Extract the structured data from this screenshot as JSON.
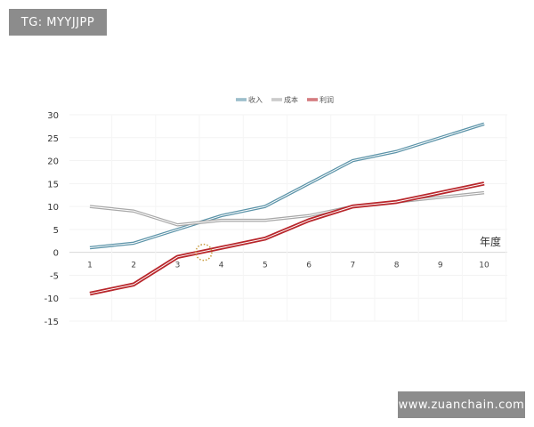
{
  "watermarks": {
    "top_left": "TG: MYYJJPP",
    "bottom_right": "www.zuanchain.com"
  },
  "chart_data": {
    "type": "line",
    "title": "",
    "xlabel": "年度",
    "ylabel": "",
    "x": [
      1,
      2,
      3,
      4,
      5,
      6,
      7,
      8,
      9,
      10
    ],
    "ylim": [
      -15,
      30
    ],
    "yticks": [
      30,
      25,
      20,
      15,
      10,
      5,
      0,
      -5,
      -10,
      -15
    ],
    "legend_position": "top",
    "grid": true,
    "series": [
      {
        "name": "收入",
        "color": "#5b93a8",
        "values": [
          1,
          2,
          5,
          8,
          10,
          15,
          20,
          22,
          25,
          28
        ]
      },
      {
        "name": "成本",
        "color": "#a8a8a8",
        "values": [
          10,
          9,
          6,
          7,
          7,
          8,
          10,
          11,
          12,
          13
        ]
      },
      {
        "name": "利润",
        "color": "#b8262b",
        "values": [
          -9,
          -7,
          -1,
          1,
          3,
          7,
          10,
          11,
          13,
          15
        ]
      }
    ],
    "annotations": [
      {
        "type": "dotted-circle",
        "color": "#c89a3c",
        "x": 3.6,
        "y": 0
      }
    ]
  }
}
